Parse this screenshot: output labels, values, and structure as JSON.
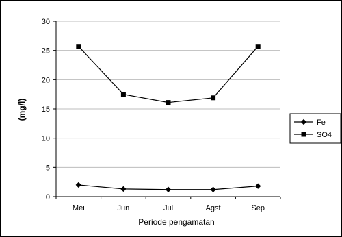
{
  "chart_data": {
    "type": "line",
    "categories": [
      "Mei",
      "Jun",
      "Jul",
      "Agst",
      "Sep"
    ],
    "series": [
      {
        "name": "Fe",
        "values": [
          2.0,
          1.3,
          1.2,
          1.2,
          1.8
        ],
        "marker": "diamond",
        "color": "#000000"
      },
      {
        "name": "SO4",
        "values": [
          25.7,
          17.5,
          16.1,
          16.9,
          25.7
        ],
        "marker": "square",
        "color": "#000000"
      }
    ],
    "title": "",
    "xlabel": "Periode pengamatan",
    "ylabel": "(mg/l)",
    "ylim": [
      0,
      30
    ],
    "yticks": [
      0,
      5,
      10,
      15,
      20,
      25,
      30
    ],
    "grid": "horizontal",
    "legend_position": "right"
  }
}
